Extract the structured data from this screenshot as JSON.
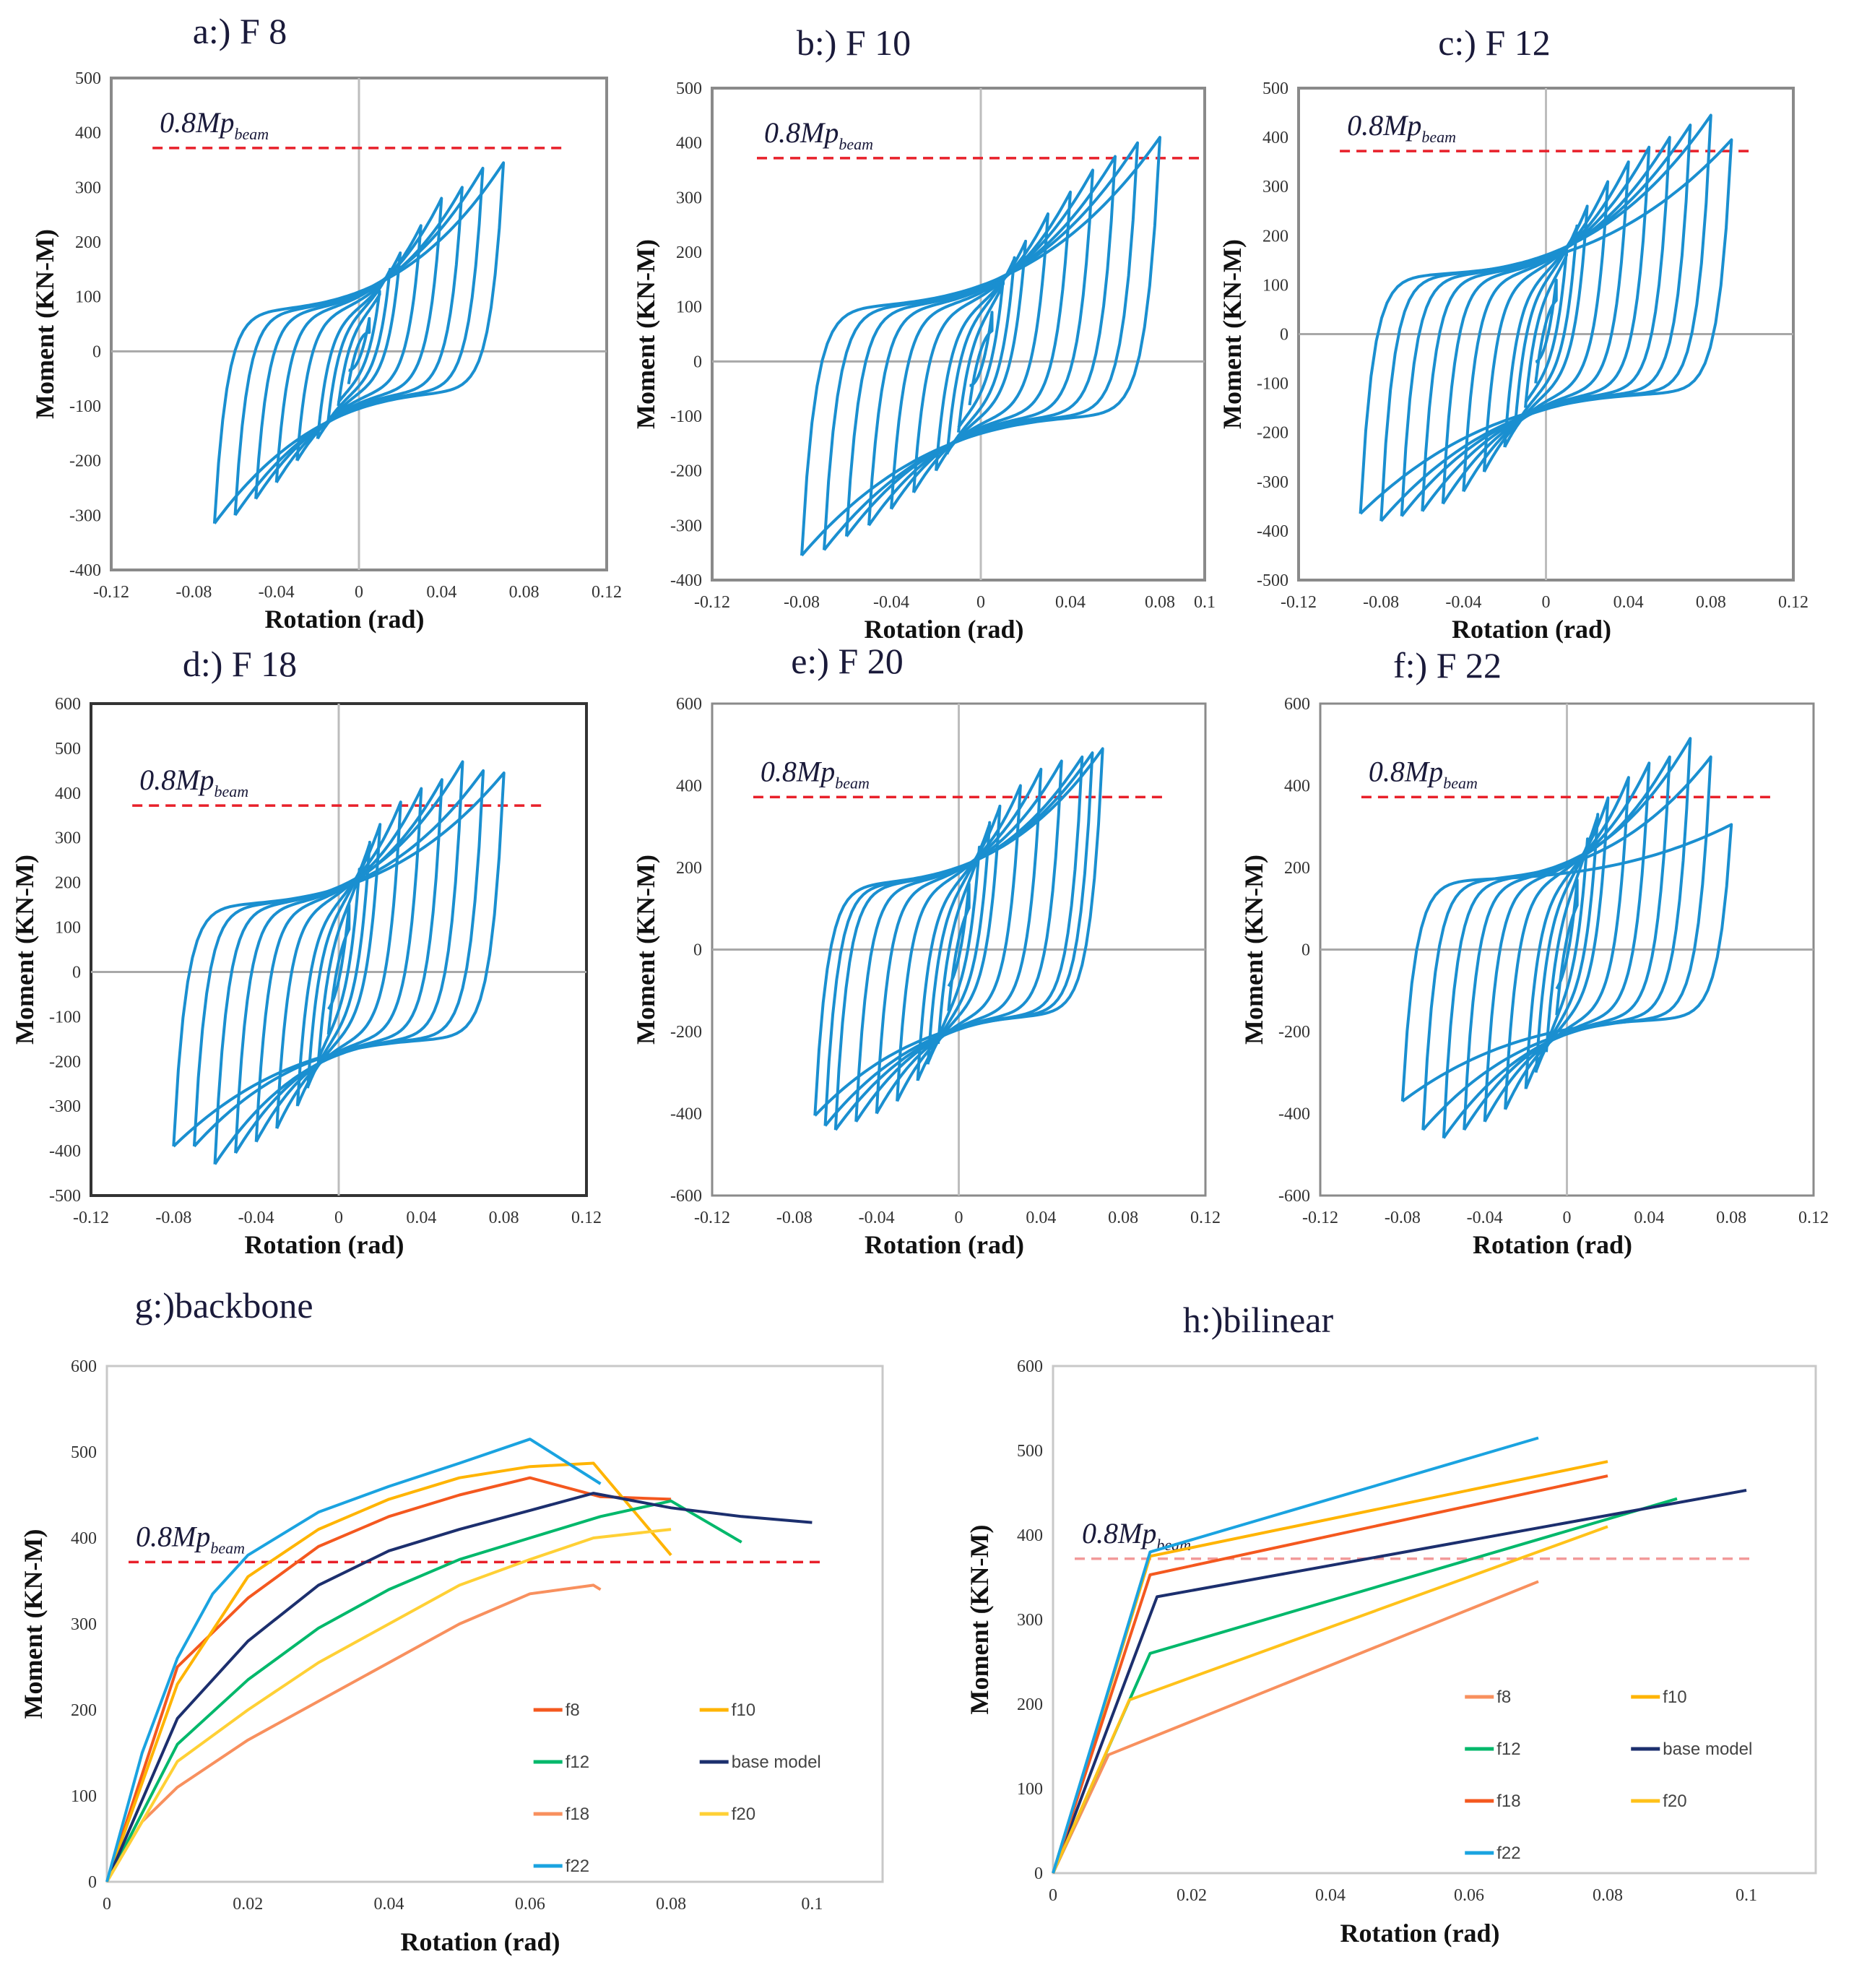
{
  "chart_data": [
    {
      "id": "a",
      "type": "line",
      "subtype": "hysteresis",
      "title": "a:) F 8",
      "xlabel": "Rotation (rad)",
      "ylabel": "Moment (KN-M)",
      "xlim": [
        -0.12,
        0.12
      ],
      "xticks": [
        "-0.12",
        "-0.08",
        "-0.04",
        "0",
        "0.04",
        "0.08",
        "0.12"
      ],
      "ylim": [
        -400,
        500
      ],
      "yticks": [
        "-400",
        "-300",
        "-200",
        "-100",
        "0",
        "100",
        "200",
        "300",
        "400",
        "500"
      ],
      "reference_line": {
        "value": 372,
        "label": "0.8Mp",
        "label_sub": "beam",
        "color": "#e8202a"
      },
      "line_color": "#1a8fd0",
      "pinch_moment": 75,
      "cycles": [
        [
          0.005,
          60,
          -60
        ],
        [
          0.01,
          110,
          -100
        ],
        [
          0.015,
          150,
          -130
        ],
        [
          0.02,
          180,
          -160
        ],
        [
          0.03,
          230,
          -200
        ],
        [
          0.04,
          280,
          -240
        ],
        [
          0.05,
          300,
          -270
        ],
        [
          0.06,
          335,
          -300
        ],
        [
          0.07,
          345,
          -315
        ]
      ]
    },
    {
      "id": "b",
      "type": "line",
      "subtype": "hysteresis",
      "title": "b:) F 10",
      "xlabel": "Rotation (rad)",
      "ylabel": "Moment (KN-M)",
      "xlim": [
        -0.12,
        0.1
      ],
      "xticks": [
        "-0.12",
        "-0.08",
        "-0.04",
        "0",
        "0.04",
        "0.08",
        "0.1"
      ],
      "ylim": [
        -400,
        500
      ],
      "yticks": [
        "-400",
        "-300",
        "-200",
        "-100",
        "0",
        "100",
        "200",
        "300",
        "400",
        "500"
      ],
      "reference_line": {
        "value": 372,
        "label": "0.8Mp",
        "label_sub": "beam",
        "color": "#e8202a"
      },
      "line_color": "#1a8fd0",
      "pinch_moment": 100,
      "cycles": [
        [
          0.005,
          90,
          -80
        ],
        [
          0.01,
          150,
          -130
        ],
        [
          0.015,
          190,
          -170
        ],
        [
          0.02,
          220,
          -200
        ],
        [
          0.03,
          270,
          -240
        ],
        [
          0.04,
          310,
          -270
        ],
        [
          0.05,
          350,
          -300
        ],
        [
          0.06,
          375,
          -320
        ],
        [
          0.07,
          400,
          -345
        ],
        [
          0.08,
          410,
          -355
        ]
      ]
    },
    {
      "id": "c",
      "type": "line",
      "subtype": "hysteresis",
      "title": "c:) F 12",
      "xlabel": "Rotation (rad)",
      "ylabel": "Moment (KN-M)",
      "xlim": [
        -0.12,
        0.12
      ],
      "xticks": [
        "-0.12",
        "-0.08",
        "-0.04",
        "0",
        "0.04",
        "0.08",
        "0.12"
      ],
      "ylim": [
        -500,
        500
      ],
      "yticks": [
        "-500",
        "-400",
        "-300",
        "-200",
        "-100",
        "0",
        "100",
        "200",
        "300",
        "400",
        "500"
      ],
      "reference_line": {
        "value": 372,
        "label": "0.8Mp",
        "label_sub": "beam",
        "color": "#e8202a"
      },
      "line_color": "#1a8fd0",
      "pinch_moment": 120,
      "cycles": [
        [
          0.005,
          110,
          -100
        ],
        [
          0.01,
          170,
          -150
        ],
        [
          0.015,
          220,
          -190
        ],
        [
          0.02,
          260,
          -230
        ],
        [
          0.03,
          310,
          -280
        ],
        [
          0.04,
          350,
          -320
        ],
        [
          0.05,
          380,
          -345
        ],
        [
          0.06,
          400,
          -360
        ],
        [
          0.07,
          425,
          -370
        ],
        [
          0.08,
          445,
          -380
        ],
        [
          0.09,
          395,
          -365
        ]
      ]
    },
    {
      "id": "d",
      "type": "line",
      "subtype": "hysteresis",
      "title": "d:) F 18",
      "xlabel": "Rotation (rad)",
      "ylabel": "Moment (KN-M)",
      "xlim": [
        -0.12,
        0.12
      ],
      "xticks": [
        "-0.12",
        "-0.08",
        "-0.04",
        "0",
        "0.04",
        "0.08",
        "0.12"
      ],
      "ylim": [
        -500,
        600
      ],
      "yticks": [
        "-500",
        "-400",
        "-300",
        "-200",
        "-100",
        "0",
        "100",
        "200",
        "300",
        "400",
        "500",
        "600"
      ],
      "reference_line": {
        "value": 372,
        "label": "0.8Mp",
        "label_sub": "beam",
        "color": "#e8202a"
      },
      "line_color": "#1a8fd0",
      "pinch_moment": 150,
      "cycles": [
        [
          0.005,
          150,
          -140
        ],
        [
          0.01,
          230,
          -210
        ],
        [
          0.015,
          290,
          -260
        ],
        [
          0.02,
          330,
          -300
        ],
        [
          0.03,
          380,
          -350
        ],
        [
          0.04,
          410,
          -380
        ],
        [
          0.05,
          430,
          -405
        ],
        [
          0.06,
          470,
          -430
        ],
        [
          0.07,
          450,
          -390
        ],
        [
          0.08,
          445,
          -390
        ]
      ]
    },
    {
      "id": "e",
      "type": "line",
      "subtype": "hysteresis",
      "title": "e:) F 20",
      "xlabel": "Rotation (rad)",
      "ylabel": "Moment (KN-M)",
      "xlim": [
        -0.12,
        0.12
      ],
      "xticks": [
        "-0.12",
        "-0.08",
        "-0.04",
        "0",
        "0.04",
        "0.08",
        "0.12"
      ],
      "ylim": [
        -600,
        600
      ],
      "yticks": [
        "-600",
        "-400",
        "-200",
        "0",
        "200",
        "400",
        "600"
      ],
      "reference_line": {
        "value": 372,
        "label": "0.8Mp",
        "label_sub": "beam",
        "color": "#e8202a"
      },
      "line_color": "#1a8fd0",
      "pinch_moment": 160,
      "cycles": [
        [
          0.005,
          160,
          -150
        ],
        [
          0.01,
          250,
          -230
        ],
        [
          0.015,
          310,
          -280
        ],
        [
          0.02,
          350,
          -320
        ],
        [
          0.03,
          400,
          -370
        ],
        [
          0.04,
          440,
          -400
        ],
        [
          0.05,
          460,
          -420
        ],
        [
          0.06,
          470,
          -440
        ],
        [
          0.065,
          480,
          -430
        ],
        [
          0.07,
          490,
          -405
        ]
      ]
    },
    {
      "id": "f",
      "type": "line",
      "subtype": "hysteresis",
      "title": "f:) F 22",
      "xlabel": "Rotation (rad)",
      "ylabel": "Moment (KN-M)",
      "xlim": [
        -0.12,
        0.12
      ],
      "xticks": [
        "-0.12",
        "-0.08",
        "-0.04",
        "0",
        "0.04",
        "0.08",
        "0.12"
      ],
      "ylim": [
        -600,
        600
      ],
      "yticks": [
        "-600",
        "-400",
        "-200",
        "0",
        "200",
        "400",
        "600"
      ],
      "reference_line": {
        "value": 372,
        "label": "0.8Mp",
        "label_sub": "beam",
        "color": "#e8202a"
      },
      "line_color": "#1a8fd0",
      "pinch_moment": 170,
      "cycles": [
        [
          0.005,
          170,
          -160
        ],
        [
          0.01,
          270,
          -250
        ],
        [
          0.015,
          330,
          -300
        ],
        [
          0.02,
          370,
          -340
        ],
        [
          0.03,
          420,
          -390
        ],
        [
          0.04,
          455,
          -420
        ],
        [
          0.05,
          470,
          -440
        ],
        [
          0.06,
          515,
          -460
        ],
        [
          0.07,
          470,
          -440
        ],
        [
          0.08,
          305,
          -370
        ]
      ]
    },
    {
      "id": "g",
      "type": "line",
      "title": "g:)backbone",
      "xlabel": "Rotation (rad)",
      "ylabel": "Moment (KN-M)",
      "xlim": [
        0,
        0.11
      ],
      "xticks": [
        "0",
        "0.02",
        "0.04",
        "0.06",
        "0.08",
        "0.1"
      ],
      "ylim": [
        0,
        600
      ],
      "yticks": [
        "0",
        "100",
        "200",
        "300",
        "400",
        "500",
        "600"
      ],
      "reference_line": {
        "value": 372,
        "label": "0.8Mp",
        "label_sub": "beam",
        "color": "#e8202a"
      },
      "legend_placement": "bottom-right",
      "series": [
        {
          "name": "f8",
          "color": "#f4581f",
          "x": [
            0,
            0.01,
            0.02,
            0.03,
            0.04,
            0.05,
            0.06,
            0.07,
            0.08
          ],
          "y": [
            0,
            250,
            330,
            390,
            425,
            450,
            470,
            448,
            445
          ]
        },
        {
          "name": "f10",
          "color": "#ffb400",
          "x": [
            0,
            0.01,
            0.02,
            0.03,
            0.04,
            0.05,
            0.06,
            0.069,
            0.08
          ],
          "y": [
            0,
            230,
            355,
            410,
            445,
            470,
            483,
            487,
            380
          ]
        },
        {
          "name": "f12",
          "color": "#00b86b",
          "x": [
            0,
            0.01,
            0.02,
            0.03,
            0.04,
            0.05,
            0.06,
            0.07,
            0.08,
            0.09
          ],
          "y": [
            0,
            160,
            235,
            295,
            340,
            375,
            400,
            425,
            443,
            395
          ]
        },
        {
          "name": "base model",
          "color": "#1c2f6e",
          "x": [
            0,
            0.01,
            0.02,
            0.03,
            0.04,
            0.05,
            0.06,
            0.069,
            0.08,
            0.09,
            0.1
          ],
          "y": [
            0,
            190,
            280,
            345,
            385,
            410,
            432,
            452,
            435,
            425,
            418
          ]
        },
        {
          "name": "f18",
          "color": "#f8905e",
          "x": [
            0,
            0.005,
            0.01,
            0.02,
            0.03,
            0.04,
            0.05,
            0.06,
            0.069,
            0.07
          ],
          "y": [
            0,
            70,
            110,
            165,
            210,
            255,
            300,
            335,
            345,
            340
          ]
        },
        {
          "name": "f20",
          "color": "#ffd035",
          "x": [
            0,
            0.01,
            0.02,
            0.03,
            0.04,
            0.05,
            0.06,
            0.069,
            0.08
          ],
          "y": [
            0,
            140,
            200,
            255,
            300,
            345,
            375,
            400,
            410
          ]
        },
        {
          "name": "f22",
          "color": "#1aa3e0",
          "x": [
            0,
            0.005,
            0.01,
            0.015,
            0.02,
            0.03,
            0.04,
            0.05,
            0.06,
            0.07
          ],
          "y": [
            0,
            150,
            260,
            335,
            380,
            430,
            460,
            487,
            515,
            463
          ]
        }
      ]
    },
    {
      "id": "h",
      "type": "line",
      "title": "h:)bilinear",
      "xlabel": "Rotation (rad)",
      "ylabel": "Moment (KN-M)",
      "xlim": [
        0,
        0.11
      ],
      "xticks": [
        "0",
        "0.02",
        "0.04",
        "0.06",
        "0.08",
        "0.1"
      ],
      "ylim": [
        0,
        600
      ],
      "yticks": [
        "0",
        "100",
        "200",
        "300",
        "400",
        "500",
        "600"
      ],
      "reference_line": {
        "value": 372,
        "label": "0.8Mp",
        "label_sub": "beam",
        "color": "#f29a9a"
      },
      "legend_placement": "bottom-right",
      "series": [
        {
          "name": "f8",
          "color": "#f8905e",
          "x": [
            0,
            0.008,
            0.07
          ],
          "y": [
            0,
            140,
            345
          ]
        },
        {
          "name": "f10",
          "color": "#ffb400",
          "x": [
            0,
            0.014,
            0.08
          ],
          "y": [
            0,
            375,
            487
          ]
        },
        {
          "name": "f12",
          "color": "#00b86b",
          "x": [
            0,
            0.014,
            0.09
          ],
          "y": [
            0,
            260,
            443
          ]
        },
        {
          "name": "base model",
          "color": "#1c2f6e",
          "x": [
            0,
            0.015,
            0.1
          ],
          "y": [
            0,
            327,
            453
          ]
        },
        {
          "name": "f18",
          "color": "#f4581f",
          "x": [
            0,
            0.014,
            0.08
          ],
          "y": [
            0,
            353,
            470
          ]
        },
        {
          "name": "f20",
          "color": "#ffc21a",
          "x": [
            0,
            0.011,
            0.08
          ],
          "y": [
            0,
            205,
            410
          ]
        },
        {
          "name": "f22",
          "color": "#1aa3e0",
          "x": [
            0,
            0.014,
            0.07
          ],
          "y": [
            0,
            380,
            515
          ]
        }
      ]
    }
  ]
}
